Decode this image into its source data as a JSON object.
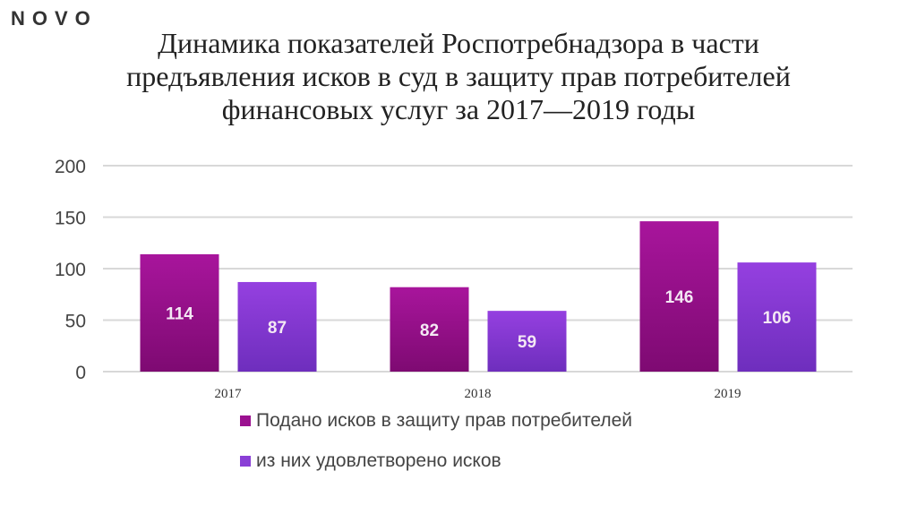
{
  "logo": "NOVO",
  "title_lines": [
    "Динамика показателей Роспотребнадзора в части",
    "предъявления исков в суд в защиту прав потребителей",
    "финансовых услуг за 2017—2019 годы"
  ],
  "chart_data": {
    "type": "bar",
    "title": "Динамика показателей Роспотребнадзора в части предъявления исков в суд в защиту прав потребителей финансовых услуг за 2017—2019 годы",
    "categories": [
      "2017",
      "2018",
      "2019"
    ],
    "series": [
      {
        "name": "Подано исков в защиту прав потребителей",
        "values": [
          114,
          82,
          146
        ],
        "color": "#9b1190"
      },
      {
        "name": "из них удовлетворено исков",
        "values": [
          87,
          59,
          106
        ],
        "color": "#8a3fd6"
      }
    ],
    "ylim": [
      0,
      200
    ],
    "yticks": [
      0,
      50,
      100,
      150,
      200
    ],
    "grid": true,
    "legend": "bottom"
  }
}
